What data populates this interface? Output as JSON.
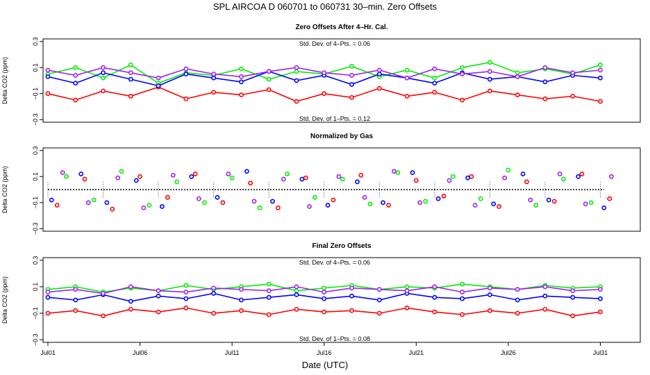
{
  "figure": {
    "title": "SPL    AIRCOA D    060701 to 060731    30–min. Zero Offsets",
    "xlabel": "Date (UTC)"
  },
  "colors": {
    "red": "#ff0000",
    "green": "#00ee00",
    "blue": "#0000ff",
    "purple": "#a020f0",
    "black": "#000000"
  },
  "chart_data": [
    {
      "type": "line",
      "title": "Zero Offsets After 4–Hr. Cal.",
      "ylabel": "Delta CO2 (ppm)",
      "xlabel": "",
      "xlim": [
        1.0,
        32.0
      ],
      "ylim": [
        -0.32,
        0.32
      ],
      "yticks": [
        "−0.3",
        "−0.1",
        "0.1",
        "0.3"
      ],
      "ytick_values": [
        -0.3,
        -0.1,
        0.1,
        0.3
      ],
      "annotations": {
        "top": "Std. Dev. of 4–Pts. = 0.06",
        "bottom": "Std. Dev. of 1–Pts. = 0.12"
      },
      "series": [
        {
          "name": "gas-red",
          "color": "#ff0000",
          "x": [
            1.0,
            2.5,
            4.0,
            5.5,
            7.0,
            8.5,
            10.0,
            11.5,
            13.0,
            14.5,
            16.0,
            17.5,
            19.0,
            20.5,
            22.0,
            23.5,
            25.0,
            26.5,
            28.0,
            29.5,
            31.0
          ],
          "values": [
            -0.1,
            -0.15,
            -0.08,
            -0.12,
            -0.05,
            -0.14,
            -0.09,
            -0.11,
            -0.07,
            -0.16,
            -0.1,
            -0.13,
            -0.06,
            -0.12,
            -0.09,
            -0.15,
            -0.08,
            -0.11,
            -0.14,
            -0.12,
            -0.16
          ]
        },
        {
          "name": "gas-green",
          "color": "#00ee00",
          "x": [
            1.0,
            2.5,
            4.0,
            5.5,
            7.0,
            8.5,
            10.0,
            11.5,
            13.0,
            14.5,
            16.0,
            17.5,
            19.0,
            20.5,
            22.0,
            23.5,
            25.0,
            26.5,
            28.0,
            29.5,
            31.0
          ],
          "values": [
            0.05,
            0.1,
            0.02,
            0.12,
            -0.02,
            0.06,
            0.04,
            0.09,
            0.01,
            0.07,
            0.05,
            0.11,
            0.03,
            0.08,
            0.02,
            0.1,
            0.14,
            0.06,
            0.09,
            0.05,
            0.12
          ]
        },
        {
          "name": "gas-blue",
          "color": "#0000ff",
          "x": [
            1.0,
            2.5,
            4.0,
            5.5,
            7.0,
            8.5,
            10.0,
            11.5,
            13.0,
            14.5,
            16.0,
            17.5,
            19.0,
            20.5,
            22.0,
            23.5,
            25.0,
            26.5,
            28.0,
            29.5,
            31.0
          ],
          "values": [
            0.03,
            -0.02,
            0.06,
            0.01,
            -0.04,
            0.05,
            0.02,
            -0.01,
            0.07,
            0.0,
            0.04,
            -0.03,
            0.05,
            0.02,
            -0.02,
            0.06,
            0.01,
            0.03,
            -0.01,
            0.04,
            0.02
          ]
        },
        {
          "name": "gas-purple",
          "color": "#a020f0",
          "x": [
            1.0,
            2.5,
            4.0,
            5.5,
            7.0,
            8.5,
            10.0,
            11.5,
            13.0,
            14.5,
            16.0,
            17.5,
            19.0,
            20.5,
            22.0,
            23.5,
            25.0,
            26.5,
            28.0,
            29.5,
            31.0
          ],
          "values": [
            0.08,
            0.04,
            0.1,
            0.06,
            0.02,
            0.09,
            0.05,
            0.03,
            0.07,
            0.1,
            0.06,
            0.04,
            0.08,
            0.02,
            0.09,
            0.05,
            0.07,
            0.03,
            0.1,
            0.06,
            0.08
          ]
        }
      ]
    },
    {
      "type": "scatter",
      "title": "Normalized by Gas",
      "ylabel": "Delta CO2 (ppm)",
      "xlabel": "",
      "xlim": [
        1.0,
        32.0
      ],
      "ylim": [
        -0.32,
        0.32
      ],
      "yticks": [
        "−0.3",
        "−0.1",
        "0.1",
        "0.3"
      ],
      "ytick_values": [
        -0.3,
        -0.1,
        0.1,
        0.3
      ],
      "series": [
        {
          "name": "gas-red",
          "color": "#ff0000",
          "x": [
            1.5,
            3.0,
            4.5,
            6.0,
            7.5,
            9.0,
            10.5,
            12.0,
            13.5,
            15.0,
            16.5,
            18.0,
            19.5,
            21.0,
            22.5,
            24.0,
            25.5,
            27.0,
            28.5,
            30.0,
            31.5
          ],
          "values": [
            -0.12,
            0.08,
            -0.15,
            0.1,
            -0.06,
            0.12,
            -0.1,
            0.05,
            -0.14,
            0.09,
            -0.08,
            0.11,
            -0.12,
            0.07,
            -0.05,
            0.1,
            -0.13,
            0.06,
            -0.09,
            0.12,
            -0.07
          ]
        },
        {
          "name": "gas-green",
          "color": "#00ee00",
          "x": [
            2.0,
            3.5,
            5.0,
            6.5,
            8.0,
            9.5,
            11.0,
            12.5,
            14.0,
            15.5,
            17.0,
            18.5,
            20.0,
            21.5,
            23.0,
            24.5,
            26.0,
            27.5,
            29.0,
            30.5
          ],
          "values": [
            0.1,
            -0.08,
            0.14,
            -0.12,
            0.06,
            -0.1,
            0.09,
            -0.14,
            0.12,
            -0.06,
            0.08,
            -0.11,
            0.13,
            -0.09,
            0.1,
            -0.07,
            0.15,
            -0.12,
            0.08,
            -0.1
          ]
        },
        {
          "name": "gas-blue",
          "color": "#0000ff",
          "x": [
            1.2,
            2.8,
            4.2,
            5.8,
            7.2,
            8.8,
            10.2,
            11.8,
            13.2,
            14.8,
            16.2,
            17.8,
            19.2,
            20.8,
            22.2,
            23.8,
            25.2,
            26.8,
            28.2,
            29.8,
            31.2
          ],
          "values": [
            -0.08,
            0.12,
            -0.1,
            0.07,
            -0.13,
            0.1,
            -0.06,
            0.14,
            -0.09,
            0.08,
            -0.12,
            0.06,
            -0.1,
            0.13,
            -0.07,
            0.09,
            -0.11,
            0.12,
            -0.08,
            0.1,
            -0.14
          ]
        },
        {
          "name": "gas-purple",
          "color": "#a020f0",
          "x": [
            1.8,
            3.2,
            4.8,
            6.2,
            7.8,
            9.2,
            10.8,
            12.2,
            13.8,
            15.2,
            16.8,
            18.2,
            19.8,
            21.2,
            22.8,
            24.2,
            25.8,
            27.2,
            28.8,
            30.2,
            31.6
          ],
          "values": [
            0.13,
            -0.1,
            0.09,
            -0.14,
            0.11,
            -0.07,
            0.12,
            -0.09,
            0.08,
            -0.13,
            0.1,
            -0.06,
            0.14,
            -0.1,
            0.07,
            -0.12,
            0.09,
            -0.08,
            0.12,
            -0.11,
            0.1
          ]
        },
        {
          "name": "normalized-black",
          "color": "#000000",
          "x": [
            1.0,
            4.0,
            7.0,
            10.0,
            13.0,
            16.0,
            19.0,
            22.0,
            25.0,
            28.0,
            31.0
          ],
          "values": [
            0.0,
            0.0,
            0.0,
            0.0,
            0.0,
            0.0,
            0.0,
            0.0,
            0.0,
            0.0,
            0.0
          ]
        }
      ]
    },
    {
      "type": "line",
      "title": "Final Zero Offsets",
      "ylabel": "Delta CO2 (ppm)",
      "xlabel": "Date (UTC)",
      "xlim": [
        1.0,
        32.0
      ],
      "ylim": [
        -0.32,
        0.32
      ],
      "yticks": [
        "−0.3",
        "−0.1",
        "0.1",
        "0.3"
      ],
      "ytick_values": [
        -0.3,
        -0.1,
        0.1,
        0.3
      ],
      "xticks": [
        "Jul01",
        "Jul06",
        "Jul11",
        "Jul16",
        "Jul21",
        "Jul26",
        "Jul31"
      ],
      "xtick_values": [
        1,
        6,
        11,
        16,
        21,
        26,
        31
      ],
      "annotations": {
        "top": "Std. Dev. of 4–Pts. = 0.06",
        "bottom": "Std. Dev. of 1–Pts. = 0.08"
      },
      "series": [
        {
          "name": "gas-red",
          "color": "#ff0000",
          "x": [
            1.0,
            2.5,
            4.0,
            5.5,
            7.0,
            8.5,
            10.0,
            11.5,
            13.0,
            14.5,
            16.0,
            17.5,
            19.0,
            20.5,
            22.0,
            23.5,
            25.0,
            26.5,
            28.0,
            29.5,
            31.0
          ],
          "values": [
            -0.1,
            -0.08,
            -0.12,
            -0.07,
            -0.09,
            -0.06,
            -0.1,
            -0.08,
            -0.11,
            -0.07,
            -0.09,
            -0.08,
            -0.1,
            -0.06,
            -0.09,
            -0.11,
            -0.08,
            -0.1,
            -0.07,
            -0.12,
            -0.09
          ]
        },
        {
          "name": "gas-green",
          "color": "#00ee00",
          "x": [
            1.0,
            2.5,
            4.0,
            5.5,
            7.0,
            8.5,
            10.0,
            11.5,
            13.0,
            14.5,
            16.0,
            17.5,
            19.0,
            20.5,
            22.0,
            23.5,
            25.0,
            26.5,
            28.0,
            29.5,
            31.0
          ],
          "values": [
            0.08,
            0.1,
            0.06,
            0.09,
            0.07,
            0.11,
            0.08,
            0.1,
            0.12,
            0.07,
            0.09,
            0.11,
            0.08,
            0.1,
            0.09,
            0.12,
            0.1,
            0.08,
            0.11,
            0.09,
            0.1
          ]
        },
        {
          "name": "gas-blue",
          "color": "#0000ff",
          "x": [
            1.0,
            2.5,
            4.0,
            5.5,
            7.0,
            8.5,
            10.0,
            11.5,
            13.0,
            14.5,
            16.0,
            17.5,
            19.0,
            20.5,
            22.0,
            23.5,
            25.0,
            26.5,
            28.0,
            29.5,
            31.0
          ],
          "values": [
            0.02,
            0.0,
            0.04,
            -0.01,
            0.03,
            0.01,
            0.05,
            0.0,
            0.02,
            0.04,
            0.01,
            0.03,
            0.0,
            0.05,
            0.02,
            0.01,
            0.04,
            0.0,
            0.03,
            0.02,
            0.01
          ]
        },
        {
          "name": "gas-purple",
          "color": "#a020f0",
          "x": [
            1.0,
            2.5,
            4.0,
            5.5,
            7.0,
            8.5,
            10.0,
            11.5,
            13.0,
            14.5,
            16.0,
            17.5,
            19.0,
            20.5,
            22.0,
            23.5,
            25.0,
            26.5,
            28.0,
            29.5,
            31.0
          ],
          "values": [
            0.06,
            0.08,
            0.05,
            0.1,
            0.07,
            0.06,
            0.09,
            0.08,
            0.07,
            0.1,
            0.06,
            0.09,
            0.08,
            0.07,
            0.1,
            0.06,
            0.09,
            0.08,
            0.1,
            0.07,
            0.08
          ]
        }
      ]
    }
  ]
}
